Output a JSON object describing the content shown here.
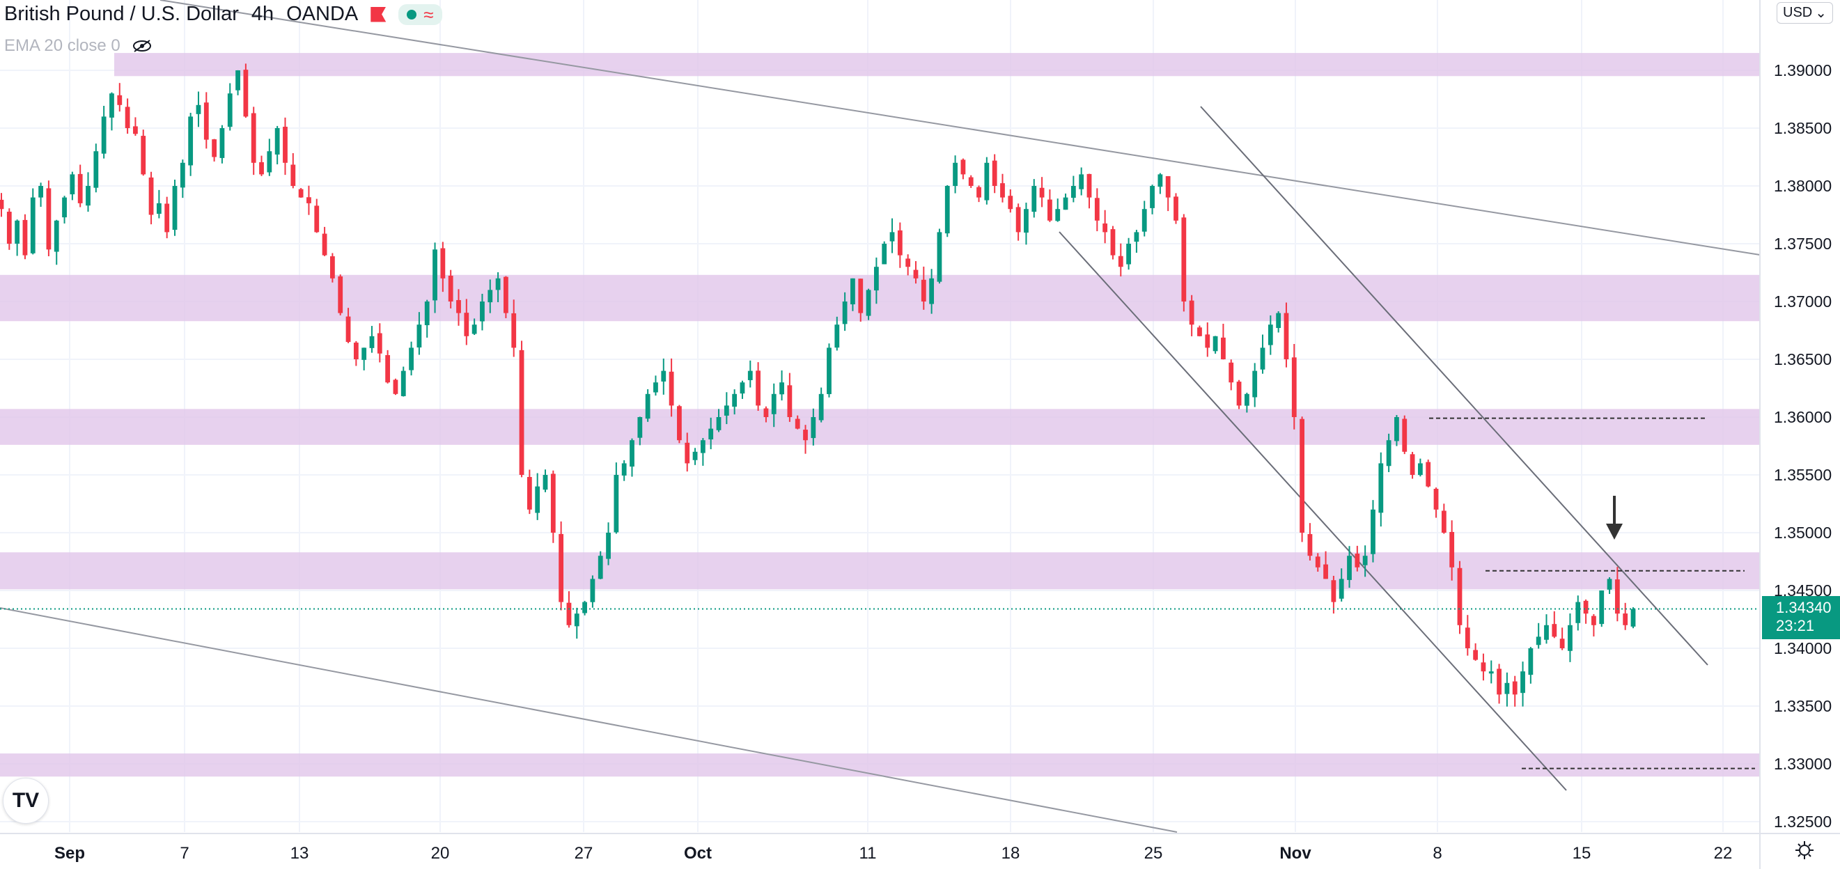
{
  "header": {
    "symbol": "British Pound / U.S. Dollar",
    "interval": "4h",
    "exchange": "OANDA",
    "indicator": "EMA 20 close 0"
  },
  "currency_button": "USD",
  "last_price": {
    "value": "1.34340",
    "countdown": "23:21"
  },
  "colors": {
    "up": "#089981",
    "down": "#f23645",
    "zone": "#e1c6ea",
    "accent_bg": "#089981"
  },
  "chart_data": {
    "type": "candlestick",
    "title": "British Pound / U.S. Dollar",
    "interval": "4h",
    "ylim": [
      1.3225,
      1.3925
    ],
    "y_ticks": [
      "1.39000",
      "1.38500",
      "1.38000",
      "1.37500",
      "1.37000",
      "1.36500",
      "1.36000",
      "1.35500",
      "1.35000",
      "1.34500",
      "1.34000",
      "1.33500",
      "1.33000",
      "1.32500"
    ],
    "x_ticks": [
      "Sep",
      "7",
      "13",
      "20",
      "27",
      "Oct",
      "11",
      "18",
      "25",
      "Nov",
      "8",
      "15",
      "22"
    ],
    "grid": true,
    "zones": [
      {
        "from": 1.3895,
        "to": 1.3915
      },
      {
        "from": 1.3683,
        "to": 1.3723
      },
      {
        "from": 1.3576,
        "to": 1.3607
      },
      {
        "from": 1.3451,
        "to": 1.3483
      },
      {
        "from": 1.3289,
        "to": 1.3309
      }
    ],
    "levels": [
      {
        "name": "dashed",
        "value": 1.3599
      },
      {
        "name": "dashed",
        "value": 1.3467
      },
      {
        "name": "dashed",
        "value": 1.3296
      }
    ],
    "close_path": [
      1.378,
      1.375,
      1.377,
      1.374,
      1.379,
      1.38,
      1.3745,
      1.377,
      1.379,
      1.381,
      1.3785,
      1.38,
      1.383,
      1.386,
      1.388,
      1.387,
      1.385,
      1.3845,
      1.381,
      1.3775,
      1.3785,
      1.376,
      1.38,
      1.382,
      1.386,
      1.387,
      1.384,
      1.3825,
      1.385,
      1.388,
      1.39,
      1.386,
      1.382,
      1.381,
      1.383,
      1.385,
      1.382,
      1.38,
      1.379,
      1.3785,
      1.376,
      1.374,
      1.372,
      1.369,
      1.3665,
      1.365,
      1.366,
      1.367,
      1.3655,
      1.363,
      1.362,
      1.364,
      1.366,
      1.368,
      1.37,
      1.3745,
      1.372,
      1.37,
      1.369,
      1.367,
      1.368,
      1.37,
      1.371,
      1.372,
      1.369,
      1.366,
      1.355,
      1.352,
      1.354,
      1.355,
      1.35,
      1.344,
      1.342,
      1.343,
      1.344,
      1.346,
      1.348,
      1.35,
      1.355,
      1.356,
      1.358,
      1.36,
      1.362,
      1.363,
      1.364,
      1.361,
      1.358,
      1.356,
      1.357,
      1.358,
      1.359,
      1.36,
      1.361,
      1.362,
      1.363,
      1.364,
      1.361,
      1.36,
      1.362,
      1.363,
      1.36,
      1.359,
      1.358,
      1.36,
      1.362,
      1.366,
      1.368,
      1.37,
      1.372,
      1.369,
      1.371,
      1.373,
      1.375,
      1.376,
      1.374,
      1.373,
      1.372,
      1.37,
      1.372,
      1.376,
      1.38,
      1.382,
      1.381,
      1.38,
      1.379,
      1.382,
      1.38,
      1.379,
      1.378,
      1.376,
      1.378,
      1.38,
      1.379,
      1.377,
      1.378,
      1.379,
      1.38,
      1.381,
      1.379,
      1.377,
      1.376,
      1.374,
      1.373,
      1.375,
      1.376,
      1.378,
      1.38,
      1.381,
      1.379,
      1.377,
      1.37,
      1.368,
      1.367,
      1.366,
      1.367,
      1.365,
      1.363,
      1.361,
      1.362,
      1.364,
      1.366,
      1.368,
      1.369,
      1.365,
      1.36,
      1.35,
      1.348,
      1.347,
      1.346,
      1.344,
      1.346,
      1.348,
      1.347,
      1.348,
      1.352,
      1.356,
      1.358,
      1.36,
      1.357,
      1.355,
      1.356,
      1.354,
      1.352,
      1.35,
      1.347,
      1.342,
      1.34,
      1.339,
      1.338,
      1.338,
      1.336,
      1.337,
      1.336,
      1.338,
      1.34,
      1.341,
      1.342,
      1.341,
      1.34,
      1.342,
      1.344,
      1.343,
      1.342,
      1.345,
      1.346,
      1.343,
      1.342,
      1.3434
    ],
    "x_start": "Sep",
    "x_end": "15",
    "annotations": [
      "trend-channel",
      "down-arrow-marker"
    ]
  }
}
